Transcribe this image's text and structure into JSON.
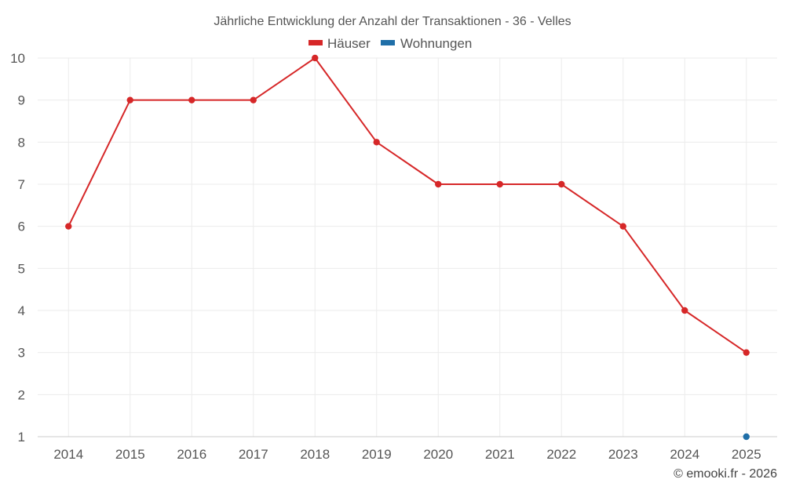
{
  "chart_data": {
    "type": "line",
    "title": "Jährliche Entwicklung der Anzahl der Transaktionen - 36 - Velles",
    "categories": [
      "2014",
      "2015",
      "2016",
      "2017",
      "2018",
      "2019",
      "2020",
      "2021",
      "2022",
      "2023",
      "2024",
      "2025"
    ],
    "series": [
      {
        "name": "Häuser",
        "color": "#d62728",
        "values": [
          6,
          9,
          9,
          9,
          10,
          8,
          7,
          7,
          7,
          6,
          4,
          3
        ]
      },
      {
        "name": "Wohnungen",
        "color": "#1f6fa8",
        "values": [
          null,
          null,
          null,
          null,
          null,
          null,
          null,
          null,
          null,
          null,
          null,
          1
        ]
      }
    ],
    "ylim": [
      1,
      10
    ],
    "yticks": [
      1,
      2,
      3,
      4,
      5,
      6,
      7,
      8,
      9,
      10
    ],
    "legend_position": "top-center",
    "grid": true,
    "xlabel": "",
    "ylabel": ""
  },
  "credit": "© emooki.fr - 2026"
}
